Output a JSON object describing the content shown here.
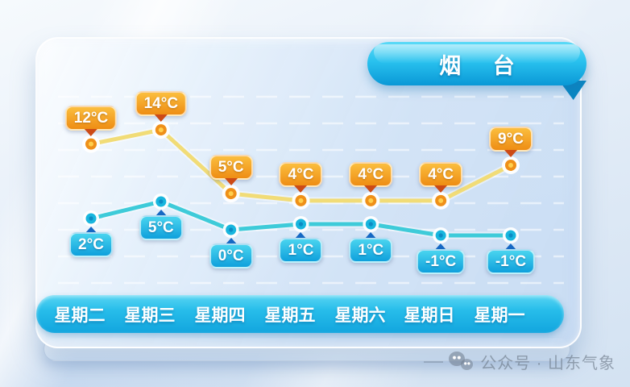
{
  "banner": {
    "title": "烟 台"
  },
  "watermark": {
    "icon": "wechat-icon",
    "text": "公众号 · 山东气象"
  },
  "chart_data": {
    "type": "line",
    "title": "烟台",
    "categories": [
      "星期二",
      "星期三",
      "星期四",
      "星期五",
      "星期六",
      "星期日",
      "星期一"
    ],
    "series": [
      {
        "name": "high",
        "values": [
          12,
          14,
          5,
          4,
          4,
          4,
          9
        ],
        "labels": [
          "12°C",
          "14°C",
          "5°C",
          "4°C",
          "4°C",
          "4°C",
          "9°C"
        ],
        "line_color": "#f1dc77",
        "point_fill": "#ef9019",
        "point_core": "#ffcf4d",
        "bubble_top": "#fbbe3e",
        "bubble_bottom": "#ee8d14",
        "arrow_color": "#cc4a16"
      },
      {
        "name": "low",
        "values": [
          2,
          5,
          0,
          1,
          1,
          -1,
          -1
        ],
        "labels": [
          "2°C",
          "5°C",
          "0°C",
          "1°C",
          "1°C",
          "-1°C",
          "-1°C"
        ],
        "line_color": "#3ecbd9",
        "point_fill": "#18b6de",
        "point_core": "#0d8cc4",
        "bubble_top": "#49d4ef",
        "bubble_bottom": "#0fa0dc",
        "arrow_color": "#1668c4"
      }
    ],
    "legend": false,
    "grid": "horizontal-dashed"
  }
}
